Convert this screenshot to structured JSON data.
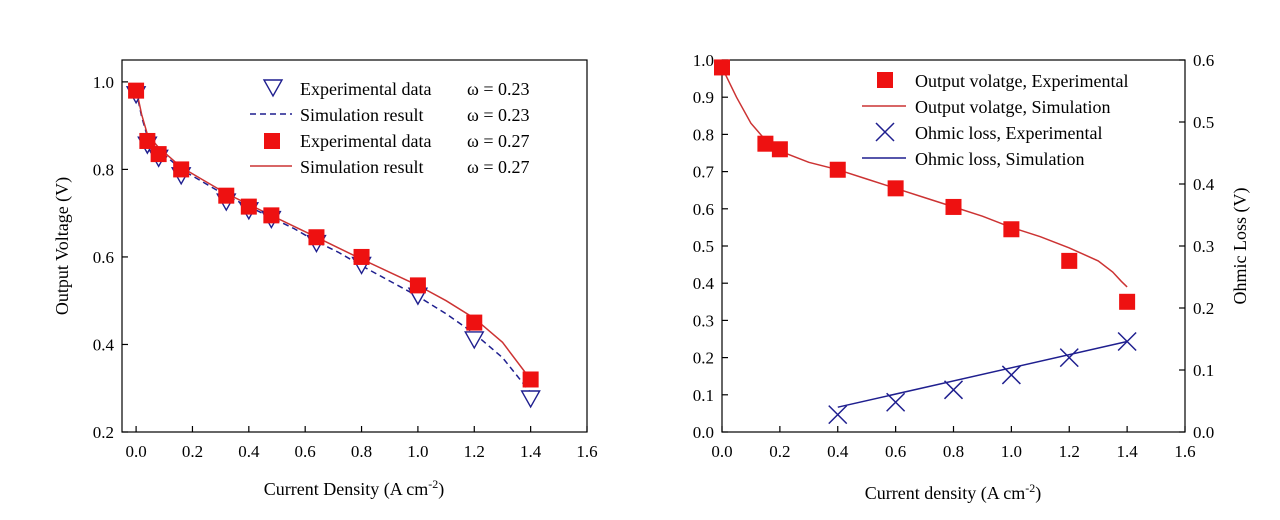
{
  "chart_data": [
    {
      "type": "line",
      "xlabel": "Current Density (A cm",
      "xlabel_sup": "-2",
      "xlabel_end": ")",
      "ylabel": "Output Voltage (V)",
      "xlim": [
        -0.05,
        1.6
      ],
      "ylim": [
        0.2,
        1.05
      ],
      "xticks": [
        0.0,
        0.2,
        0.4,
        0.6,
        0.8,
        1.0,
        1.2,
        1.4,
        1.6
      ],
      "xtick_labels": [
        "0.0",
        "0.2",
        "0.4",
        "0.6",
        "0.8",
        "1.0",
        "1.2",
        "1.4",
        "1.6"
      ],
      "yticks": [
        0.2,
        0.4,
        0.6,
        0.8,
        1.0
      ],
      "ytick_labels": [
        "0.2",
        "0.4",
        "0.6",
        "0.8",
        "1.0"
      ],
      "series": [
        {
          "name": "Experimental data",
          "omega": "ω = 0.23",
          "style": "triangle-down-open",
          "color": "#1f1f8f",
          "x": [
            0.0,
            0.04,
            0.08,
            0.16,
            0.32,
            0.4,
            0.48,
            0.64,
            0.8,
            1.0,
            1.2,
            1.4
          ],
          "y": [
            0.975,
            0.86,
            0.83,
            0.79,
            0.73,
            0.71,
            0.69,
            0.635,
            0.585,
            0.515,
            0.415,
            0.28
          ]
        },
        {
          "name": "Simulation result",
          "omega": "ω = 0.23",
          "style": "dashed-line",
          "color": "#1f1f8f",
          "x": [
            0.0,
            0.02,
            0.04,
            0.08,
            0.16,
            0.24,
            0.32,
            0.4,
            0.48,
            0.56,
            0.64,
            0.72,
            0.8,
            0.9,
            1.0,
            1.1,
            1.2,
            1.3,
            1.4
          ],
          "y": [
            0.98,
            0.92,
            0.875,
            0.845,
            0.8,
            0.77,
            0.74,
            0.715,
            0.69,
            0.665,
            0.635,
            0.61,
            0.58,
            0.545,
            0.51,
            0.47,
            0.425,
            0.37,
            0.29
          ]
        },
        {
          "name": "Experimental data",
          "omega": "ω = 0.27",
          "style": "square-filled",
          "color": "#ee1111",
          "x": [
            0.0,
            0.04,
            0.08,
            0.16,
            0.32,
            0.4,
            0.48,
            0.64,
            0.8,
            1.0,
            1.2,
            1.4
          ],
          "y": [
            0.98,
            0.865,
            0.835,
            0.8,
            0.74,
            0.715,
            0.695,
            0.645,
            0.6,
            0.535,
            0.45,
            0.32
          ]
        },
        {
          "name": "Simulation result",
          "omega": "ω = 0.27",
          "style": "solid-line",
          "color": "#cc3333",
          "x": [
            0.0,
            0.02,
            0.04,
            0.08,
            0.16,
            0.24,
            0.32,
            0.4,
            0.48,
            0.56,
            0.64,
            0.72,
            0.8,
            0.9,
            1.0,
            1.1,
            1.2,
            1.3,
            1.4
          ],
          "y": [
            0.985,
            0.925,
            0.88,
            0.85,
            0.805,
            0.775,
            0.745,
            0.72,
            0.695,
            0.67,
            0.645,
            0.62,
            0.595,
            0.565,
            0.535,
            0.5,
            0.46,
            0.405,
            0.32
          ]
        }
      ]
    },
    {
      "type": "line",
      "xlabel": "Current density (A cm",
      "xlabel_sup": "-2",
      "xlabel_end": ")",
      "ylabel": "",
      "y2label": "Ohmic Loss (V)",
      "xlim": [
        0.0,
        1.6
      ],
      "ylim": [
        0.0,
        1.0
      ],
      "y2lim": [
        0.0,
        0.6
      ],
      "xticks": [
        0.0,
        0.2,
        0.4,
        0.6,
        0.8,
        1.0,
        1.2,
        1.4,
        1.6
      ],
      "xtick_labels": [
        "0.0",
        "0.2",
        "0.4",
        "0.6",
        "0.8",
        "1.0",
        "1.2",
        "1.4",
        "1.6"
      ],
      "yticks": [
        0.0,
        0.1,
        0.2,
        0.3,
        0.4,
        0.5,
        0.6,
        0.7,
        0.8,
        0.9,
        1.0
      ],
      "ytick_labels": [
        "0.0",
        "0.1",
        "0.2",
        "0.3",
        "0.4",
        "0.5",
        "0.6",
        "0.7",
        "0.8",
        "0.9",
        "1.0"
      ],
      "y2ticks": [
        0.0,
        0.1,
        0.2,
        0.3,
        0.4,
        0.5,
        0.6
      ],
      "y2tick_labels": [
        "0.0",
        "0.1",
        "0.2",
        "0.3",
        "0.4",
        "0.5",
        "0.6"
      ],
      "series": [
        {
          "name": "Output volatge, Experimental",
          "style": "square-filled",
          "axis": "left",
          "color": "#ee1111",
          "x": [
            0.0,
            0.15,
            0.2,
            0.4,
            0.6,
            0.8,
            1.0,
            1.2,
            1.4
          ],
          "y": [
            0.98,
            0.775,
            0.76,
            0.705,
            0.655,
            0.605,
            0.545,
            0.46,
            0.35
          ]
        },
        {
          "name": "Output volatge, Simulation",
          "style": "solid-line",
          "axis": "left",
          "color": "#cc3333",
          "x": [
            0.0,
            0.05,
            0.1,
            0.15,
            0.2,
            0.3,
            0.4,
            0.5,
            0.6,
            0.7,
            0.8,
            0.9,
            1.0,
            1.1,
            1.2,
            1.3,
            1.35,
            1.38,
            1.4
          ],
          "y": [
            0.98,
            0.9,
            0.83,
            0.785,
            0.755,
            0.725,
            0.705,
            0.68,
            0.655,
            0.63,
            0.605,
            0.58,
            0.55,
            0.525,
            0.495,
            0.46,
            0.43,
            0.405,
            0.39
          ]
        },
        {
          "name": "Ohmic loss, Experimental",
          "style": "x-marker",
          "axis": "right",
          "color": "#1f1f8f",
          "x": [
            0.4,
            0.6,
            0.8,
            1.0,
            1.2,
            1.4
          ],
          "y": [
            0.028,
            0.048,
            0.068,
            0.092,
            0.12,
            0.146
          ]
        },
        {
          "name": "Ohmic loss, Simulation",
          "style": "solid-line",
          "axis": "right",
          "color": "#1f1f8f",
          "x": [
            0.4,
            1.4
          ],
          "y": [
            0.04,
            0.146
          ]
        }
      ]
    }
  ]
}
